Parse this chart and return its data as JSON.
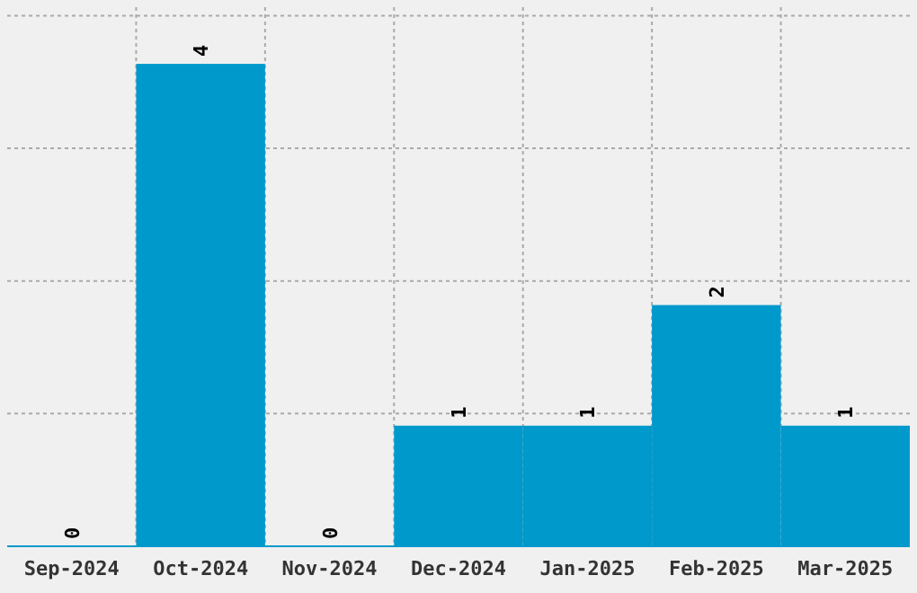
{
  "chart_data": {
    "type": "bar",
    "categories": [
      "Sep-2024",
      "Oct-2024",
      "Nov-2024",
      "Dec-2024",
      "Jan-2025",
      "Feb-2025",
      "Mar-2025"
    ],
    "values": [
      0,
      4,
      0,
      1,
      1,
      2,
      1
    ],
    "color": "#0099cc",
    "data_labels": true,
    "ylim": [
      0,
      4.47
    ],
    "yticks": [
      {
        "value": 1.1,
        "label": null
      },
      {
        "value": 2.2,
        "label": null
      },
      {
        "value": 3.3,
        "label": null
      },
      {
        "value": 4.4,
        "label": null
      }
    ],
    "grid": true,
    "tick_labels": "x"
  }
}
